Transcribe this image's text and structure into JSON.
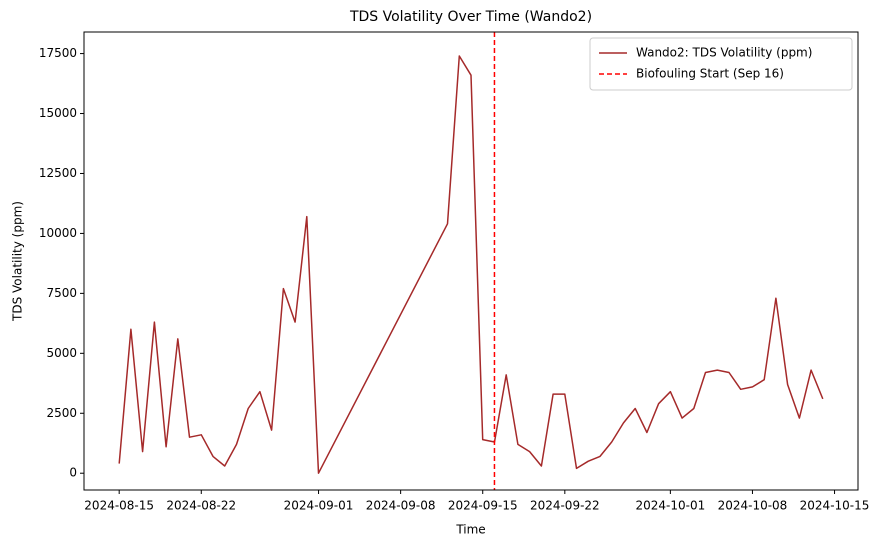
{
  "chart_data": {
    "type": "line",
    "title": "TDS Volatility Over Time (Wando2)",
    "x_label": "Time",
    "y_label": "TDS Volatility (ppm)",
    "x": [
      "2024-08-15",
      "2024-08-16",
      "2024-08-17",
      "2024-08-18",
      "2024-08-19",
      "2024-08-20",
      "2024-08-21",
      "2024-08-22",
      "2024-08-23",
      "2024-08-24",
      "2024-08-25",
      "2024-08-26",
      "2024-08-27",
      "2024-08-28",
      "2024-08-29",
      "2024-08-30",
      "2024-08-31",
      "2024-09-01",
      "2024-09-12",
      "2024-09-13",
      "2024-09-14",
      "2024-09-15",
      "2024-09-16",
      "2024-09-17",
      "2024-09-18",
      "2024-09-19",
      "2024-09-20",
      "2024-09-21",
      "2024-09-22",
      "2024-09-23",
      "2024-09-24",
      "2024-09-25",
      "2024-09-26",
      "2024-09-27",
      "2024-09-28",
      "2024-09-29",
      "2024-09-30",
      "2024-10-01",
      "2024-10-02",
      "2024-10-03",
      "2024-10-04",
      "2024-10-05",
      "2024-10-06",
      "2024-10-07",
      "2024-10-08",
      "2024-10-09",
      "2024-10-10",
      "2024-10-11",
      "2024-10-12",
      "2024-10-13",
      "2024-10-14"
    ],
    "series": [
      {
        "name": "Wando2: TDS Volatility (ppm)",
        "color": "#a52a2a",
        "values": [
          400,
          6000,
          900,
          6300,
          1100,
          5600,
          1500,
          1600,
          700,
          300,
          1200,
          2700,
          3400,
          1800,
          7700,
          6300,
          10700,
          0,
          10400,
          17400,
          16600,
          1400,
          1300,
          4100,
          1200,
          900,
          300,
          3300,
          3300,
          200,
          500,
          700,
          1300,
          2100,
          2700,
          1700,
          2900,
          3400,
          2300,
          2700,
          4200,
          4300,
          4200,
          3500,
          3600,
          3900,
          7300,
          3700,
          2300,
          4300,
          3100
        ]
      }
    ],
    "vline": {
      "x": "2024-09-16",
      "name": "Biofouling Start (Sep 16)",
      "color": "#ff0000"
    },
    "xlim": [
      "2024-08-12",
      "2024-10-17"
    ],
    "xticks": [
      "2024-08-15",
      "2024-08-22",
      "2024-09-01",
      "2024-09-08",
      "2024-09-15",
      "2024-09-22",
      "2024-10-01",
      "2024-10-08",
      "2024-10-15"
    ],
    "ylim": [
      -700,
      18400
    ],
    "yticks": [
      0,
      2500,
      5000,
      7500,
      10000,
      12500,
      15000,
      17500
    ],
    "grid": false,
    "legend": "upper right"
  }
}
